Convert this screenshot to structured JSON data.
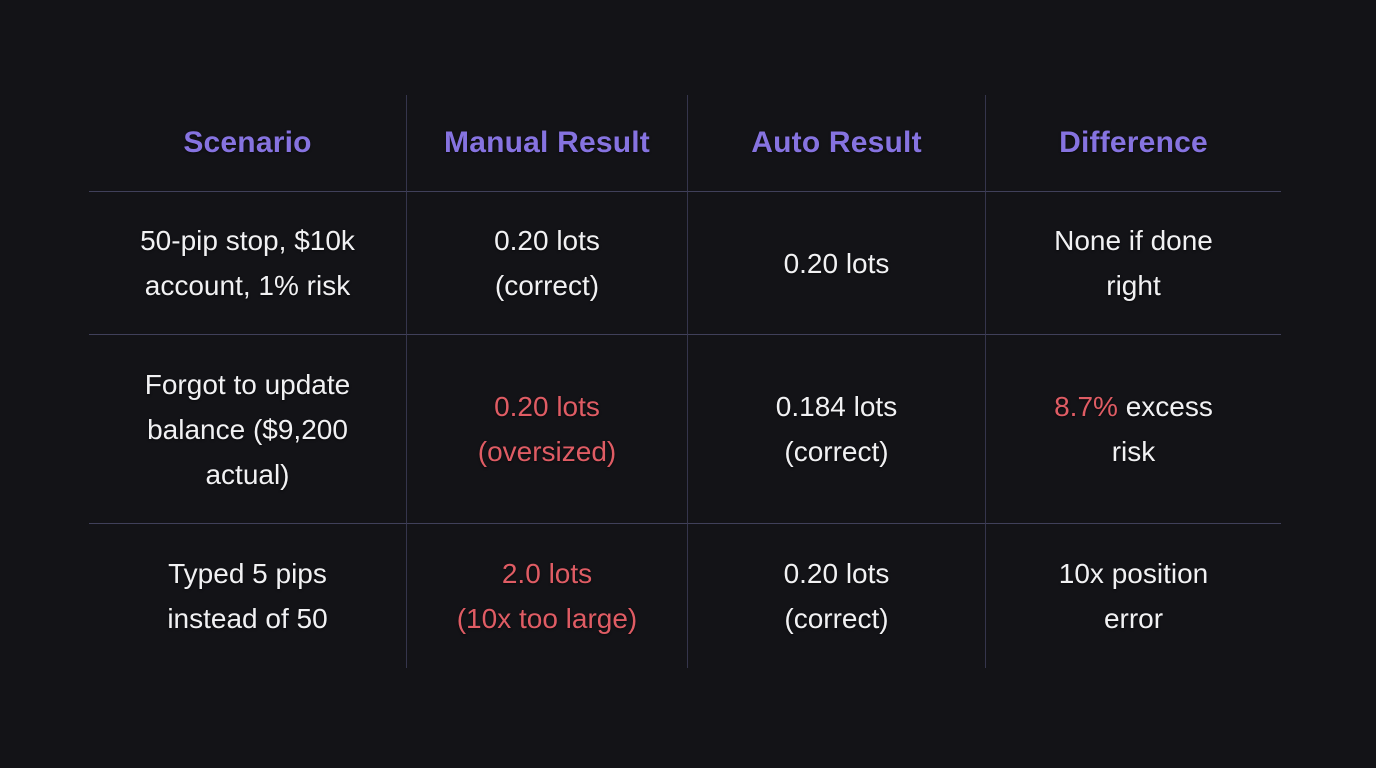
{
  "colors": {
    "background": "#131317",
    "header_text": "#8673e0",
    "body_text": "#f1f1f3",
    "error_text": "#df5c64",
    "grid_vertical": "#35354c",
    "grid_horizontal": "#40405a"
  },
  "chart_data": {
    "type": "table",
    "columns": [
      "Scenario",
      "Manual Result",
      "Auto Result",
      "Difference"
    ],
    "rows": [
      [
        "50-pip stop, $10k account, 1% risk",
        "0.20 lots (correct)",
        "0.20 lots",
        "None if done right"
      ],
      [
        "Forgot to update balance ($9,200 actual)",
        "0.20 lots (oversized)",
        "0.184 lots (correct)",
        "8.7% excess risk"
      ],
      [
        "Typed 5 pips instead of 50",
        "2.0 lots (10x too large)",
        "0.20 lots (correct)",
        "10x position error"
      ]
    ]
  },
  "table": {
    "headers": [
      "Scenario",
      "Manual Result",
      "Auto Result",
      "Difference"
    ],
    "rows": [
      {
        "cells": [
          {
            "lines": [
              [
                {
                  "t": "50-pip stop, $10k",
                  "tone": "normal"
                }
              ],
              [
                {
                  "t": "account, 1% risk",
                  "tone": "normal"
                }
              ]
            ]
          },
          {
            "lines": [
              [
                {
                  "t": "0.20 lots",
                  "tone": "normal"
                }
              ],
              [
                {
                  "t": "(correct)",
                  "tone": "normal"
                }
              ]
            ]
          },
          {
            "lines": [
              [
                {
                  "t": "0.20 lots",
                  "tone": "normal"
                }
              ]
            ]
          },
          {
            "lines": [
              [
                {
                  "t": "None if done",
                  "tone": "normal"
                }
              ],
              [
                {
                  "t": "right",
                  "tone": "normal"
                }
              ]
            ]
          }
        ]
      },
      {
        "cells": [
          {
            "lines": [
              [
                {
                  "t": "Forgot to update",
                  "tone": "normal"
                }
              ],
              [
                {
                  "t": "balance ($9,200",
                  "tone": "normal"
                }
              ],
              [
                {
                  "t": "actual)",
                  "tone": "normal"
                }
              ]
            ]
          },
          {
            "lines": [
              [
                {
                  "t": "0.20 lots",
                  "tone": "error"
                }
              ],
              [
                {
                  "t": "(oversized)",
                  "tone": "error"
                }
              ]
            ]
          },
          {
            "lines": [
              [
                {
                  "t": "0.184 lots",
                  "tone": "normal"
                }
              ],
              [
                {
                  "t": "(correct)",
                  "tone": "normal"
                }
              ]
            ]
          },
          {
            "lines": [
              [
                {
                  "t": "8.7%",
                  "tone": "error"
                },
                {
                  "t": " excess",
                  "tone": "normal"
                }
              ],
              [
                {
                  "t": "risk",
                  "tone": "normal"
                }
              ]
            ]
          }
        ]
      },
      {
        "cells": [
          {
            "lines": [
              [
                {
                  "t": "Typed 5 pips",
                  "tone": "normal"
                }
              ],
              [
                {
                  "t": "instead of 50",
                  "tone": "normal"
                }
              ]
            ]
          },
          {
            "lines": [
              [
                {
                  "t": "2.0 lots",
                  "tone": "error"
                }
              ],
              [
                {
                  "t": "(10x too large)",
                  "tone": "error"
                }
              ]
            ]
          },
          {
            "lines": [
              [
                {
                  "t": "0.20 lots",
                  "tone": "normal"
                }
              ],
              [
                {
                  "t": "(correct)",
                  "tone": "normal"
                }
              ]
            ]
          },
          {
            "lines": [
              [
                {
                  "t": "10x position",
                  "tone": "normal"
                }
              ],
              [
                {
                  "t": "error",
                  "tone": "normal"
                }
              ]
            ]
          }
        ]
      }
    ]
  }
}
